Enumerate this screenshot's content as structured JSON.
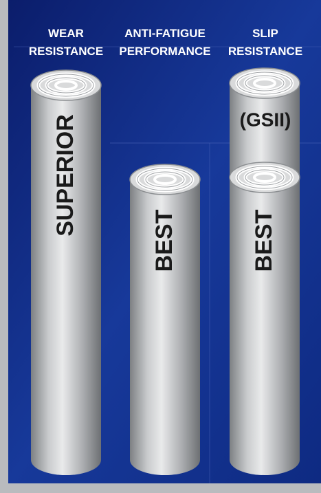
{
  "columns": [
    {
      "header": [
        "WEAR",
        "RESISTANCE"
      ],
      "label": "SUPERIOR"
    },
    {
      "header": [
        "ANTI-FATIGUE",
        "PERFORMANCE"
      ],
      "label": "BEST"
    },
    {
      "header": [
        "SLIP",
        "RESISTANCE"
      ],
      "label": "BEST",
      "upper_label": "(GSII)"
    }
  ]
}
